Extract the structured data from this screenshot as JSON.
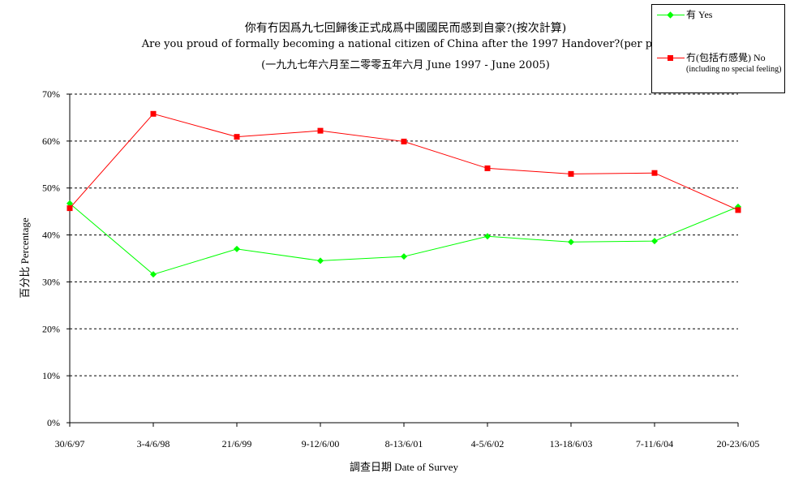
{
  "chart_data": {
    "type": "line",
    "title_line1": "你有冇因爲九七回歸後正式成爲中國國民而感到自豪?(按次計算)",
    "title_line2": "Are you proud of formally becoming a national citizen of China after the 1997 Handover?(per poll)",
    "title_line3": "(一九九七年六月至二零零五年六月 June 1997 - June 2005)",
    "xlabel": "調查日期 Date of Survey",
    "ylabel": "百分比 Percentage",
    "categories": [
      "30/6/97",
      "3-4/6/98",
      "21/6/99",
      "9-12/6/00",
      "8-13/6/01",
      "4-5/6/02",
      "13-18/6/03",
      "7-11/6/04",
      "20-23/6/05"
    ],
    "ylim": [
      0,
      70
    ],
    "yticks": [
      "0%",
      "10%",
      "20%",
      "30%",
      "40%",
      "50%",
      "60%",
      "70%"
    ],
    "grid": true,
    "legend_position": "top-right",
    "series": [
      {
        "name": "有 Yes",
        "color": "#00ff00",
        "marker": "diamond",
        "values": [
          46.7,
          31.6,
          37.0,
          34.5,
          35.4,
          39.7,
          38.5,
          38.7,
          46.0
        ]
      },
      {
        "name": "冇(包括冇感覺) No",
        "sub": "(including no special feeling)",
        "color": "#ff0000",
        "marker": "square",
        "values": [
          45.7,
          65.8,
          60.9,
          62.2,
          59.9,
          54.2,
          53.0,
          53.2,
          45.3
        ]
      }
    ]
  }
}
